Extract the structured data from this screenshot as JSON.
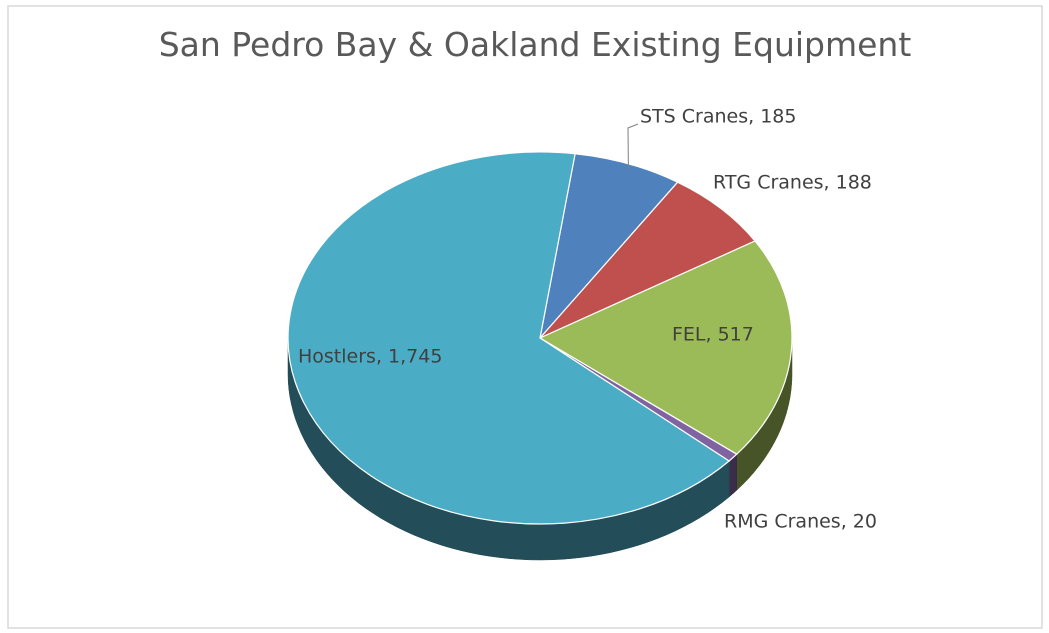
{
  "chart_data": {
    "type": "pie",
    "title": "San Pedro Bay & Oakland Existing Equipment",
    "values": [
      185,
      188,
      517,
      20,
      1745
    ],
    "value_labels": [
      "STS Cranes, 185",
      "RTG Cranes, 188",
      "FEL, 517",
      "RMG Cranes, 20",
      "Hostlers, 1,745"
    ],
    "colors": [
      "#4f81bd",
      "#c0504d",
      "#9bbb59",
      "#8064a2",
      "#4bacc6"
    ]
  }
}
